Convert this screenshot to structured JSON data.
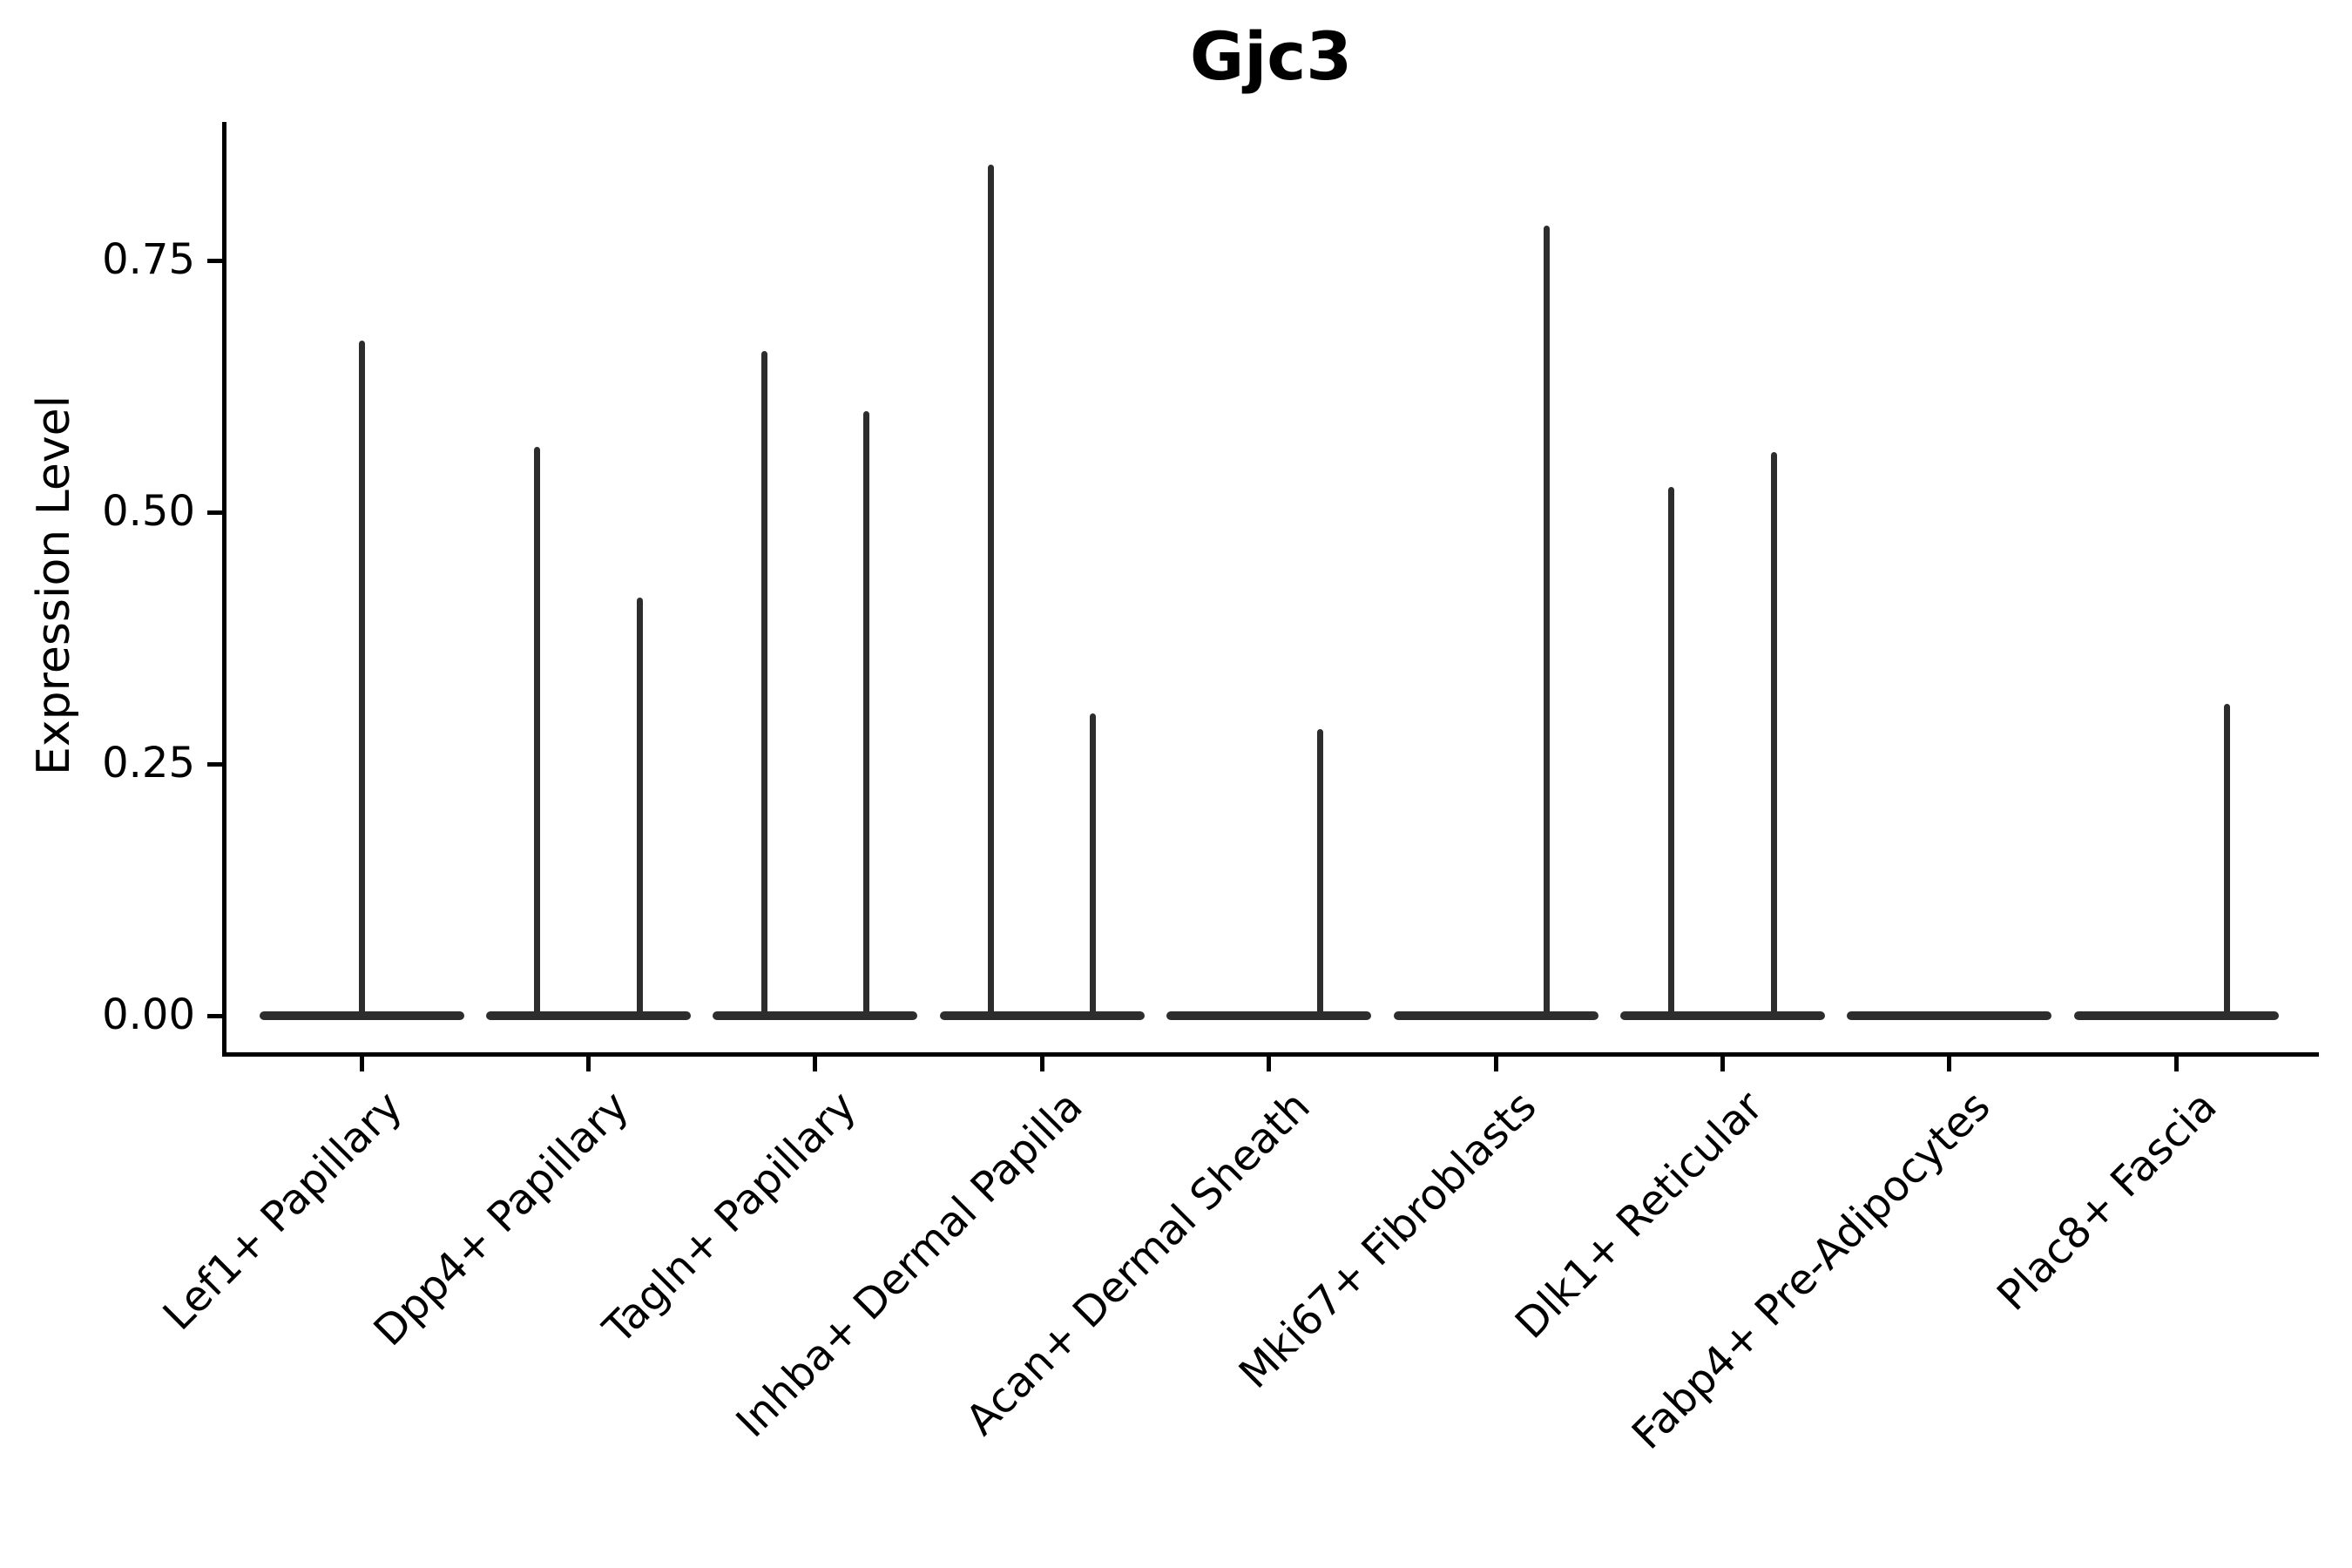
{
  "chart_data": {
    "type": "violin",
    "title": "Gjc3",
    "ylabel": "Expression Level",
    "xlabel": "",
    "ylim": [
      -0.04,
      0.89
    ],
    "yticks": [
      {
        "value": 0.0,
        "label": "0.00"
      },
      {
        "value": 0.25,
        "label": "0.25"
      },
      {
        "value": 0.5,
        "label": "0.50"
      },
      {
        "value": 0.75,
        "label": "0.75"
      }
    ],
    "x_tick_rotation": 45,
    "legend": "none",
    "grid": "off",
    "colors": {
      "violin_stroke": "#2d2d2d",
      "axis": "#000000",
      "text": "#000000",
      "background": "#ffffff"
    },
    "categories": [
      "Lef1+ Papillary",
      "Dpp4+ Papillary",
      "Tagln+ Papillary",
      "Inhba+ Dermal Papilla",
      "Acan+ Dermal Sheath",
      "Mki67+ Fibroblasts",
      "Dlk1+ Reticular",
      "Fabp4+ Pre-Adipocytes",
      "Plac8+ Fascia"
    ],
    "groups": [
      {
        "category": "Lef1+ Papillary",
        "violins": [
          {
            "position": "full",
            "peak": 0.67
          }
        ]
      },
      {
        "category": "Dpp4+ Papillary",
        "violins": [
          {
            "position": "left",
            "peak": 0.565
          },
          {
            "position": "right",
            "peak": 0.415
          }
        ]
      },
      {
        "category": "Tagln+ Papillary",
        "violins": [
          {
            "position": "left",
            "peak": 0.66
          },
          {
            "position": "right",
            "peak": 0.6
          }
        ]
      },
      {
        "category": "Inhba+ Dermal Papilla",
        "violins": [
          {
            "position": "left",
            "peak": 0.845
          },
          {
            "position": "right",
            "peak": 0.3
          }
        ]
      },
      {
        "category": "Acan+ Dermal Sheath",
        "violins": [
          {
            "position": "left",
            "peak": 0
          },
          {
            "position": "right",
            "peak": 0.285
          }
        ]
      },
      {
        "category": "Mki67+ Fibroblasts",
        "violins": [
          {
            "position": "left",
            "peak": 0
          },
          {
            "position": "right",
            "peak": 0.785
          }
        ]
      },
      {
        "category": "Dlk1+ Reticular",
        "violins": [
          {
            "position": "left",
            "peak": 0.525
          },
          {
            "position": "right",
            "peak": 0.56
          }
        ]
      },
      {
        "category": "Fabp4+ Pre-Adipocytes",
        "violins": [
          {
            "position": "left",
            "peak": 0
          },
          {
            "position": "right",
            "peak": 0
          }
        ]
      },
      {
        "category": "Plac8+ Fascia",
        "violins": [
          {
            "position": "left",
            "peak": 0
          },
          {
            "position": "right",
            "peak": 0.31
          }
        ]
      }
    ]
  }
}
